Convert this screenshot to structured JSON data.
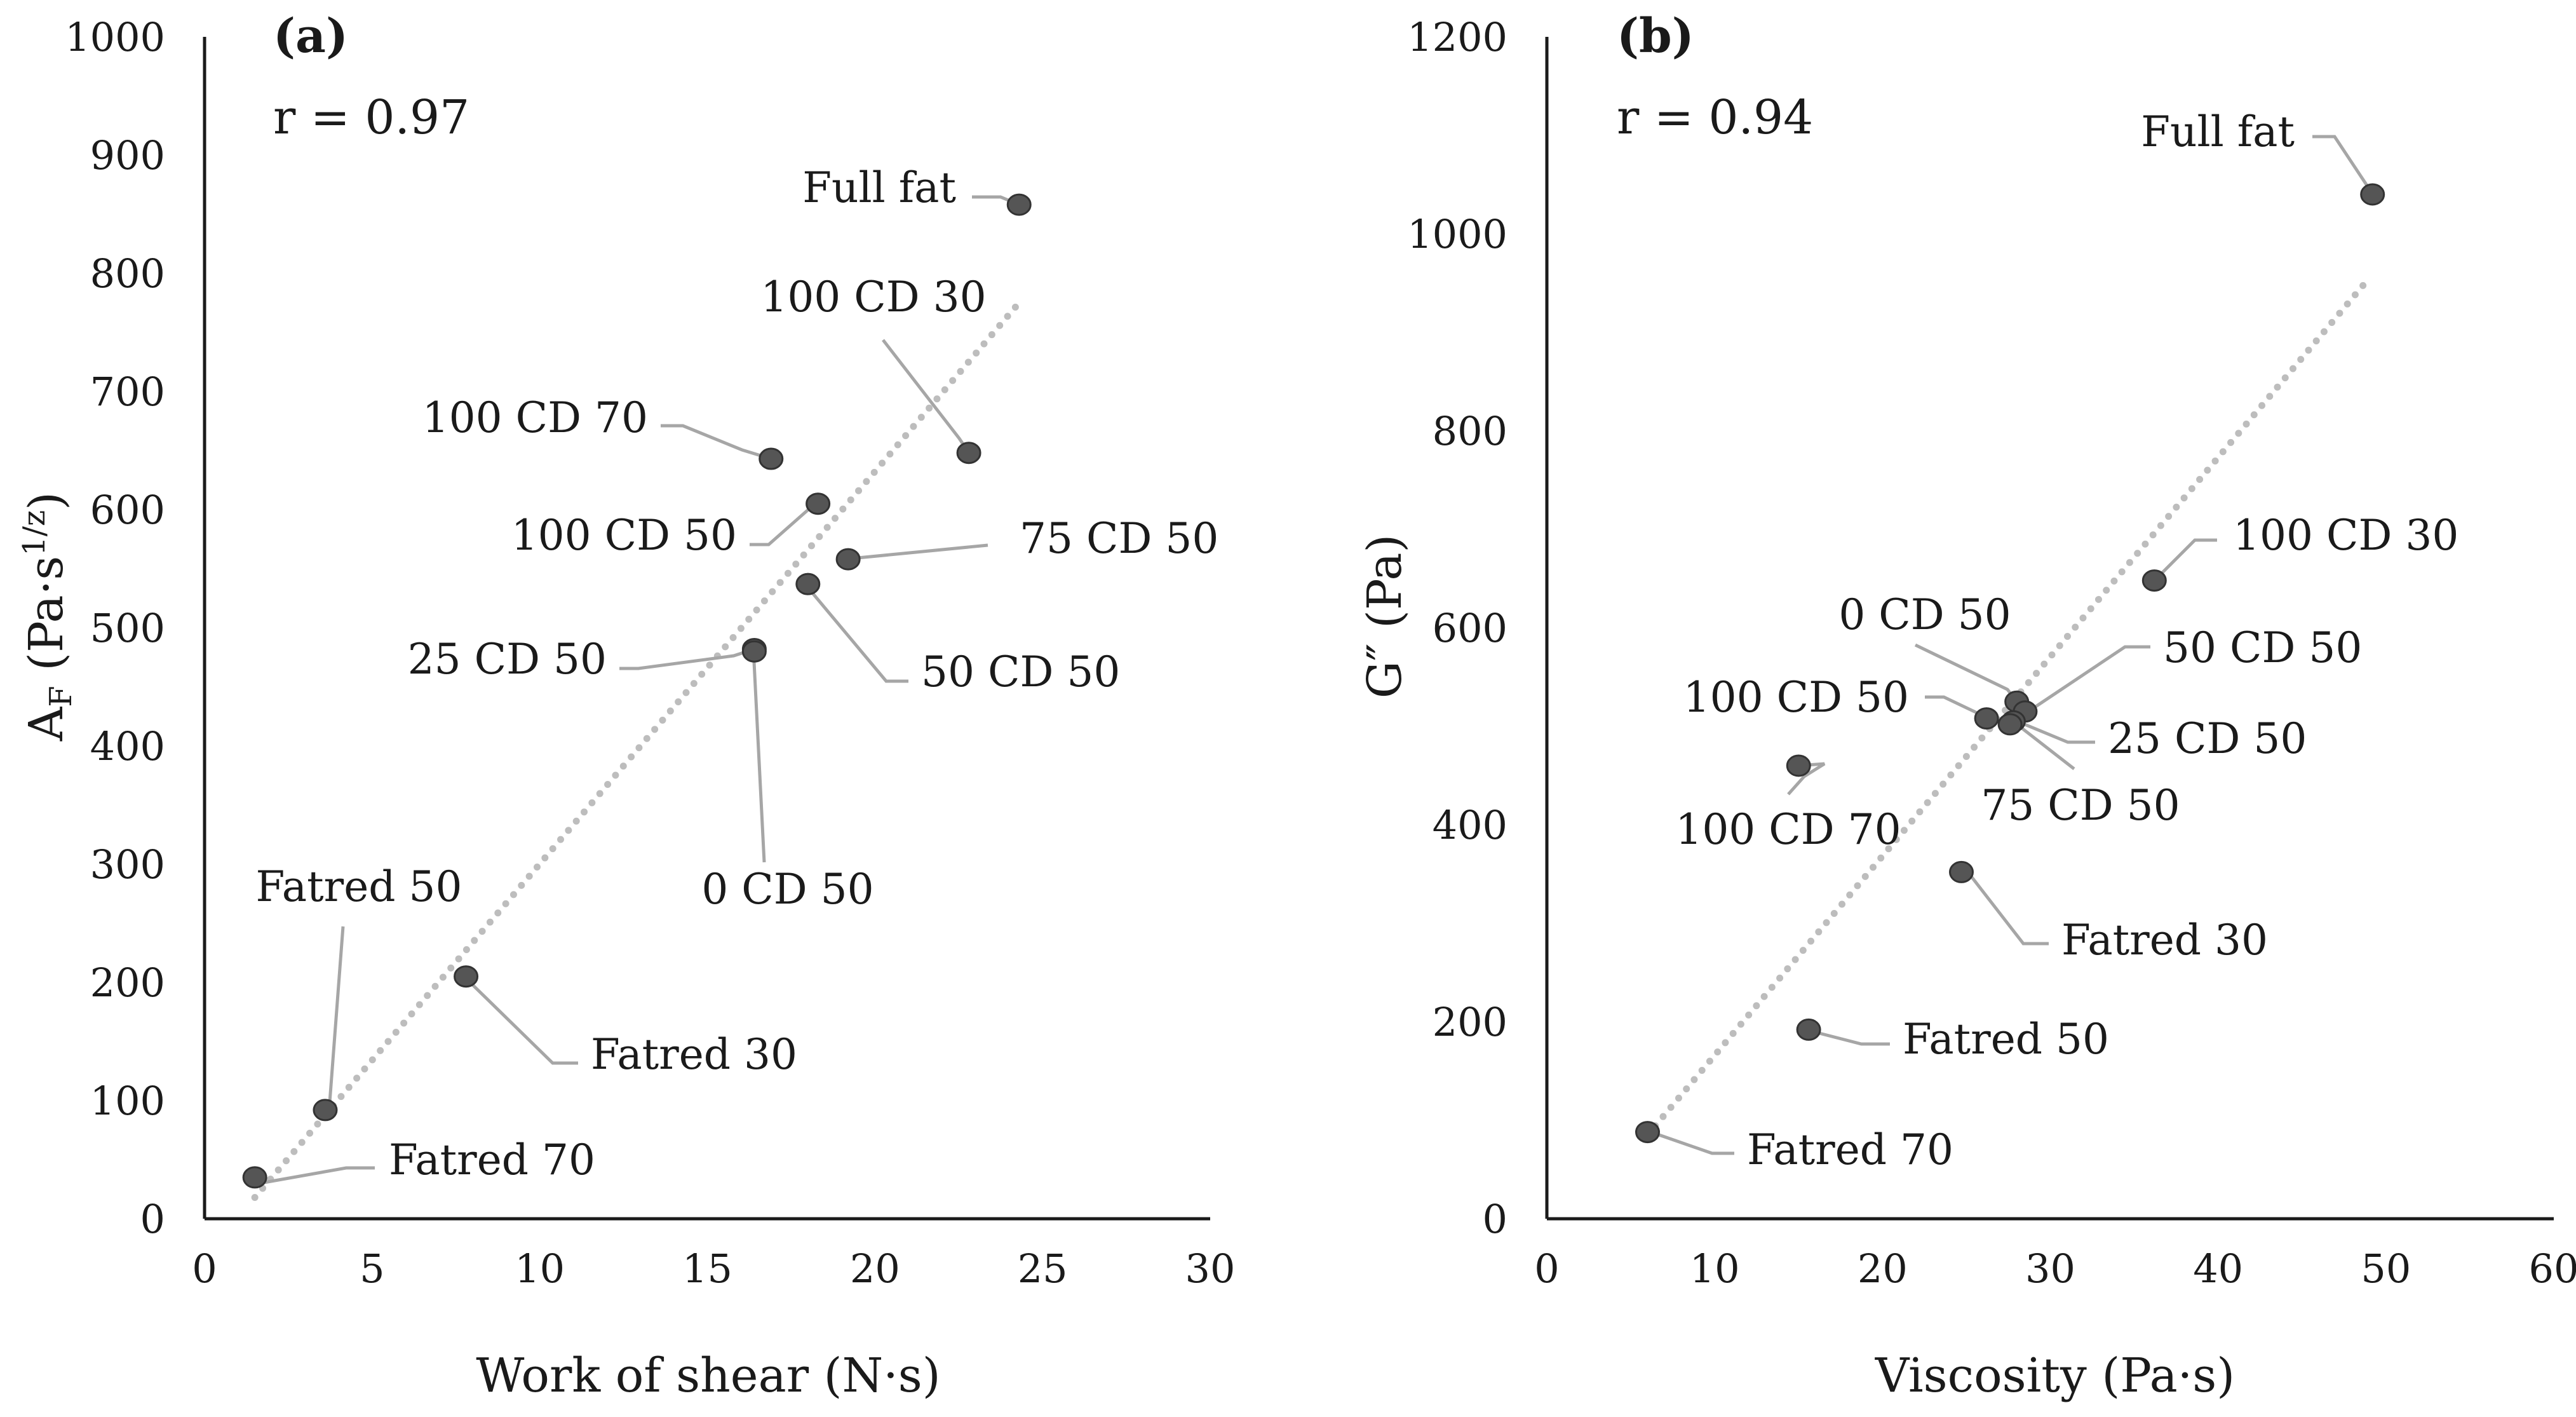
{
  "chart_data": [
    {
      "type": "scatter",
      "panel_label": "(a)",
      "annotation": "r = 0.97",
      "xlabel": "Work of shear (N·s)",
      "ylabel": "A_F (Pa·s^1/z)",
      "ylabel_parts": {
        "main": "A",
        "sub": "F",
        "paren": " (Pa·s",
        "sup": "1/z",
        "close": ")"
      },
      "xlim": [
        0,
        30
      ],
      "ylim": [
        0,
        1000
      ],
      "xticks": [
        "0",
        "5",
        "10",
        "15",
        "20",
        "25",
        "30"
      ],
      "yticks": [
        "0",
        "100",
        "200",
        "300",
        "400",
        "500",
        "600",
        "700",
        "800",
        "900",
        "1000"
      ],
      "trendline": {
        "style": "dotted",
        "x": [
          1.5,
          24.3
        ],
        "y": [
          18,
          775
        ]
      },
      "points": [
        {
          "label": "Full fat",
          "x": 24.3,
          "y": 858
        },
        {
          "label": "100 CD 30",
          "x": 22.8,
          "y": 648
        },
        {
          "label": "100 CD 70",
          "x": 16.9,
          "y": 643
        },
        {
          "label": "100 CD 50",
          "x": 18.3,
          "y": 605
        },
        {
          "label": "75 CD 50",
          "x": 19.2,
          "y": 558
        },
        {
          "label": "50 CD 50",
          "x": 18.0,
          "y": 537
        },
        {
          "label": "25 CD 50",
          "x": 16.4,
          "y": 482
        },
        {
          "label": "0 CD 50",
          "x": 16.4,
          "y": 480
        },
        {
          "label": "Fatred 30",
          "x": 7.8,
          "y": 205
        },
        {
          "label": "Fatred 50",
          "x": 3.6,
          "y": 92
        },
        {
          "label": "Fatred 70",
          "x": 1.5,
          "y": 35
        }
      ]
    },
    {
      "type": "scatter",
      "panel_label": "(b)",
      "annotation": "r = 0.94",
      "xlabel": "Viscosity (Pa·s)",
      "ylabel": "G″ (Pa)",
      "xlim": [
        0,
        60
      ],
      "ylim": [
        0,
        1200
      ],
      "xticks": [
        "0",
        "10",
        "20",
        "30",
        "40",
        "50",
        "60"
      ],
      "yticks": [
        "0",
        "200",
        "400",
        "600",
        "800",
        "1000",
        "1200"
      ],
      "trendline": {
        "style": "dotted",
        "x": [
          6.0,
          49.0
        ],
        "y": [
          85,
          955
        ]
      },
      "points": [
        {
          "label": "Full fat",
          "x": 49.2,
          "y": 1040
        },
        {
          "label": "100 CD 30",
          "x": 36.2,
          "y": 648
        },
        {
          "label": "0 CD 50",
          "x": 28.0,
          "y": 525
        },
        {
          "label": "50 CD 50",
          "x": 28.5,
          "y": 515
        },
        {
          "label": "100 CD 50",
          "x": 26.2,
          "y": 508
        },
        {
          "label": "25 CD 50",
          "x": 27.8,
          "y": 505
        },
        {
          "label": "75 CD 50",
          "x": 27.6,
          "y": 502
        },
        {
          "label": "100 CD 70",
          "x": 15.0,
          "y": 460
        },
        {
          "label": "Fatred 30",
          "x": 24.7,
          "y": 352
        },
        {
          "label": "Fatred 50",
          "x": 15.6,
          "y": 192
        },
        {
          "label": "Fatred 70",
          "x": 6.0,
          "y": 88
        }
      ]
    }
  ]
}
